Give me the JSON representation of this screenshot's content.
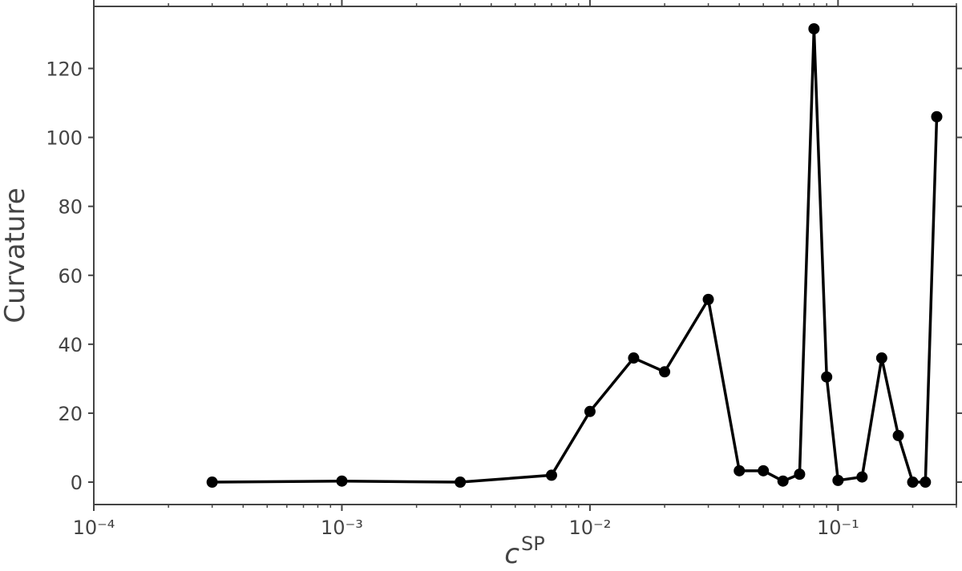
{
  "chart_data": {
    "type": "line",
    "xlabel": "c",
    "xlabel_sup": "SP",
    "ylabel": "Curvature",
    "x": [
      0.0003,
      0.001,
      0.003,
      0.007,
      0.01,
      0.015,
      0.02,
      0.03,
      0.04,
      0.05,
      0.06,
      0.07,
      0.08,
      0.09,
      0.1,
      0.125,
      0.15,
      0.175,
      0.2,
      0.225,
      0.25
    ],
    "values": [
      0,
      0.3,
      0,
      2,
      20.5,
      36,
      32,
      53,
      3.3,
      3.3,
      0.3,
      2.3,
      131.5,
      30.5,
      0.5,
      1.5,
      36,
      13.5,
      0,
      0,
      106
    ],
    "color": "#000000",
    "xscale": "log",
    "xlim": [
      0.0001,
      0.3
    ],
    "ylim": [
      -6.5,
      138
    ],
    "xticks": [
      {
        "value": 0.0001,
        "label": "10⁻⁴"
      },
      {
        "value": 0.001,
        "label": "10⁻³"
      },
      {
        "value": 0.01,
        "label": "10⁻²"
      },
      {
        "value": 0.1,
        "label": "10⁻¹"
      }
    ],
    "xminorticks": [
      0.0002,
      0.0003,
      0.0004,
      0.0005,
      0.0006,
      0.0007,
      0.0008,
      0.0009,
      0.002,
      0.003,
      0.004,
      0.005,
      0.006,
      0.007,
      0.008,
      0.009,
      0.02,
      0.03,
      0.04,
      0.05,
      0.06,
      0.07,
      0.08,
      0.09,
      0.2,
      0.3
    ],
    "yticks": [
      0,
      20,
      40,
      60,
      80,
      100,
      120
    ]
  }
}
